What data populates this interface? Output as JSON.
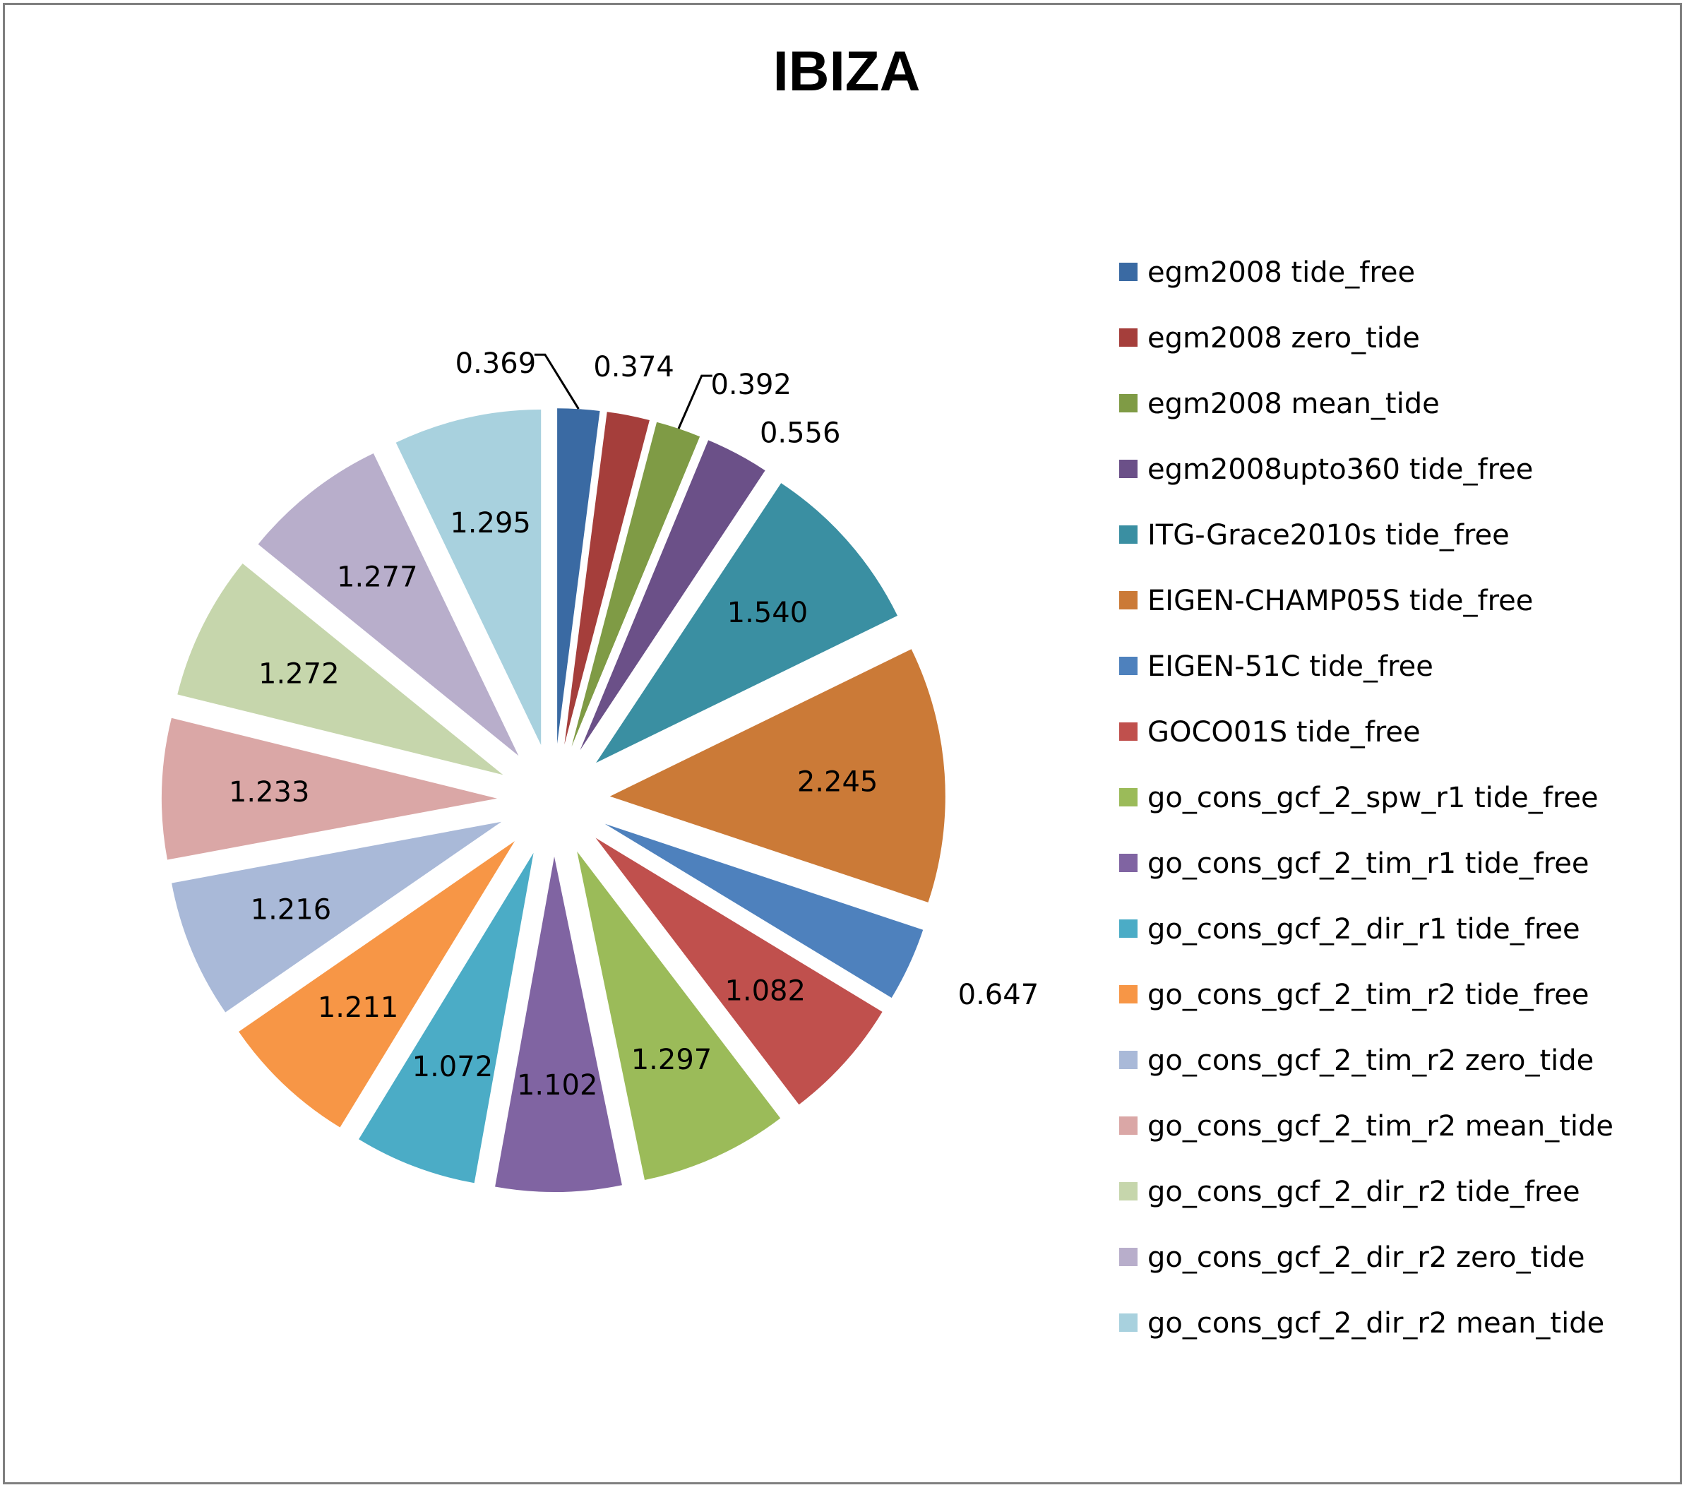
{
  "chart_data": {
    "type": "pie",
    "title": "IBIZA",
    "exploded": true,
    "legend_position": "right",
    "categories": [
      "egm2008 tide_free",
      "egm2008 zero_tide",
      "egm2008 mean_tide",
      "egm2008upto360 tide_free",
      "ITG-Grace2010s tide_free",
      "EIGEN-CHAMP05S  tide_free",
      "EIGEN-51C  tide_free",
      "GOCO01S tide_free",
      "go_cons_gcf_2_spw_r1 tide_free",
      "go_cons_gcf_2_tim_r1 tide_free",
      "go_cons_gcf_2_dir_r1 tide_free",
      "go_cons_gcf_2_tim_r2 tide_free",
      "go_cons_gcf_2_tim_r2 zero_tide",
      "go_cons_gcf_2_tim_r2 mean_tide",
      "go_cons_gcf_2_dir_r2 tide_free",
      "go_cons_gcf_2_dir_r2 zero_tide",
      "go_cons_gcf_2_dir_r2 mean_tide"
    ],
    "values": [
      0.369,
      0.374,
      0.392,
      0.556,
      1.54,
      2.245,
      0.647,
      1.082,
      1.297,
      1.102,
      1.072,
      1.211,
      1.216,
      1.233,
      1.272,
      1.277,
      1.295
    ],
    "value_labels": [
      "0.369",
      "0.374",
      "0.392",
      "0.556",
      "1.540",
      "2.245",
      "0.647",
      "1.082",
      "1.297",
      "1.102",
      "1.072",
      "1.211",
      "1.216",
      "1.233",
      "1.272",
      "1.277",
      "1.295"
    ],
    "colors": [
      "#3a6aa3",
      "#a53e3b",
      "#7f9b45",
      "#6b5088",
      "#3a8fa2",
      "#cb7a37",
      "#4e81bd",
      "#c0504d",
      "#9bbb59",
      "#8064a2",
      "#4bacc6",
      "#f79646",
      "#a9b9d8",
      "#daa7a6",
      "#c6d6ac",
      "#b8aecb",
      "#a8d1de"
    ]
  }
}
